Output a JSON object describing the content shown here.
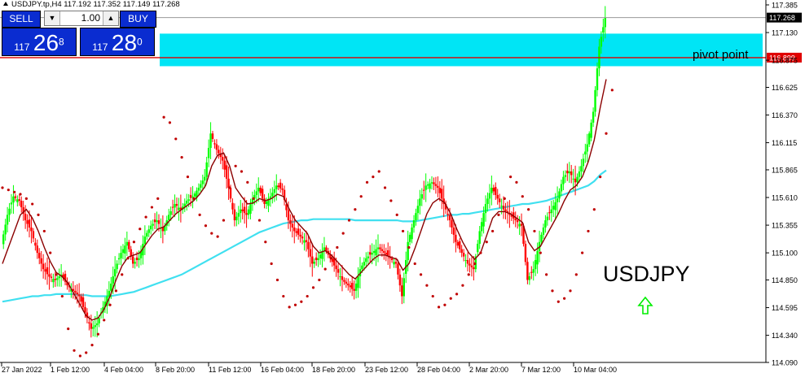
{
  "header": {
    "symbol_info": "USDJPY.tp,H4  117.192 117.352 117.149 117.268"
  },
  "trade_panel": {
    "sell_label": "SELL",
    "buy_label": "BUY",
    "lot_value": "1.00",
    "sell_price": {
      "prefix": "117",
      "big": "26",
      "sup": "8"
    },
    "buy_price": {
      "prefix": "117",
      "big": "28",
      "sup": "0"
    }
  },
  "annotations": {
    "zone_label": "pivot point",
    "symbol_label": "USDJPY",
    "arrow_icon": "up-arrow-icon"
  },
  "chart_data": {
    "type": "candlestick",
    "y_ticks": [
      "117.385",
      "117.130",
      "116.875",
      "116.625",
      "116.370",
      "116.115",
      "115.865",
      "115.610",
      "115.355",
      "115.100",
      "114.850",
      "114.595",
      "114.340",
      "114.090"
    ],
    "x_ticks": [
      "27 Jan 2022",
      "1 Feb 12:00",
      "4 Feb 04:00",
      "8 Feb 20:00",
      "11 Feb 12:00",
      "16 Feb 04:00",
      "18 Feb 20:00",
      "23 Feb 12:00",
      "28 Feb 04:00",
      "2 Mar 20:00",
      "7 Mar 12:00",
      "10 Mar 04:00"
    ],
    "ylim": [
      114.09,
      117.43
    ],
    "current_price": "117.268",
    "pivot_line_price": "116.899",
    "pivot_zone": [
      116.82,
      117.12
    ],
    "colors": {
      "bull": "#00ff00",
      "bear": "#ff0000",
      "ma_fast": "#8b0000",
      "ma_slow": "#40e0f0",
      "sar": "#c00000",
      "zone": "#00e5f5",
      "pivot_line": "#e00000",
      "panel": "#0a2cd0"
    },
    "close_path": [
      115.18,
      115.45,
      115.62,
      115.58,
      115.4,
      115.3,
      115.1,
      114.95,
      114.88,
      114.85,
      114.9,
      114.8,
      114.75,
      114.7,
      114.55,
      114.4,
      114.45,
      114.6,
      114.75,
      114.95,
      115.1,
      115.2,
      115.0,
      115.05,
      115.25,
      115.35,
      115.4,
      115.3,
      115.45,
      115.55,
      115.5,
      115.58,
      115.62,
      115.7,
      115.8,
      116.2,
      116.05,
      115.95,
      115.7,
      115.4,
      115.5,
      115.45,
      115.6,
      115.7,
      115.55,
      115.62,
      115.72,
      115.68,
      115.4,
      115.3,
      115.25,
      115.2,
      115.0,
      115.05,
      115.15,
      115.05,
      114.95,
      114.85,
      114.8,
      114.75,
      114.95,
      115.05,
      115.1,
      115.15,
      115.1,
      115.05,
      115.0,
      114.7,
      115.2,
      115.4,
      115.6,
      115.72,
      115.75,
      115.7,
      115.55,
      115.4,
      115.2,
      115.1,
      115.0,
      114.95,
      115.3,
      115.55,
      115.7,
      115.6,
      115.5,
      115.45,
      115.4,
      115.35,
      114.85,
      114.95,
      115.2,
      115.4,
      115.5,
      115.6,
      115.8,
      115.85,
      115.75,
      115.9,
      116.1,
      116.4,
      117.0,
      117.27
    ],
    "ma_fast_path": [
      115.0,
      115.15,
      115.3,
      115.45,
      115.5,
      115.42,
      115.3,
      115.15,
      115.02,
      114.92,
      114.88,
      114.82,
      114.72,
      114.62,
      114.52,
      114.48,
      114.5,
      114.58,
      114.7,
      114.85,
      114.98,
      115.06,
      115.08,
      115.1,
      115.18,
      115.26,
      115.32,
      115.34,
      115.4,
      115.46,
      115.5,
      115.54,
      115.58,
      115.64,
      115.72,
      115.9,
      116.0,
      116.02,
      115.9,
      115.7,
      115.62,
      115.55,
      115.56,
      115.6,
      115.58,
      115.6,
      115.64,
      115.62,
      115.5,
      115.4,
      115.34,
      115.28,
      115.16,
      115.1,
      115.12,
      115.08,
      115.02,
      114.96,
      114.9,
      114.86,
      114.92,
      114.98,
      115.04,
      115.08,
      115.08,
      115.06,
      115.04,
      114.94,
      115.0,
      115.14,
      115.3,
      115.46,
      115.56,
      115.6,
      115.56,
      115.46,
      115.32,
      115.2,
      115.1,
      115.04,
      115.1,
      115.26,
      115.42,
      115.48,
      115.48,
      115.46,
      115.42,
      115.38,
      115.2,
      115.12,
      115.16,
      115.26,
      115.36,
      115.46,
      115.58,
      115.68,
      115.72,
      115.8,
      115.94,
      116.14,
      116.44,
      116.7
    ],
    "ma_slow_path": [
      114.65,
      114.66,
      114.67,
      114.68,
      114.69,
      114.7,
      114.7,
      114.71,
      114.71,
      114.72,
      114.72,
      114.72,
      114.72,
      114.71,
      114.71,
      114.7,
      114.7,
      114.7,
      114.7,
      114.71,
      114.72,
      114.73,
      114.74,
      114.76,
      114.78,
      114.8,
      114.82,
      114.84,
      114.86,
      114.88,
      114.9,
      114.93,
      114.96,
      114.99,
      115.02,
      115.05,
      115.08,
      115.11,
      115.14,
      115.17,
      115.2,
      115.23,
      115.26,
      115.29,
      115.31,
      115.33,
      115.35,
      115.37,
      115.38,
      115.39,
      115.4,
      115.4,
      115.41,
      115.41,
      115.41,
      115.41,
      115.41,
      115.41,
      115.41,
      115.4,
      115.4,
      115.4,
      115.4,
      115.4,
      115.4,
      115.4,
      115.4,
      115.39,
      115.39,
      115.39,
      115.4,
      115.41,
      115.42,
      115.43,
      115.44,
      115.45,
      115.45,
      115.46,
      115.46,
      115.47,
      115.48,
      115.49,
      115.5,
      115.51,
      115.52,
      115.53,
      115.54,
      115.55,
      115.55,
      115.56,
      115.57,
      115.58,
      115.6,
      115.62,
      115.64,
      115.66,
      115.68,
      115.7,
      115.72,
      115.76,
      115.82,
      115.86
    ],
    "sar_path": [
      115.7,
      115.68,
      115.66,
      115.64,
      115.6,
      115.55,
      115.45,
      115.3,
      115.1,
      114.9,
      114.7,
      114.4,
      114.2,
      114.15,
      114.18,
      114.25,
      114.35,
      114.48,
      114.62,
      114.75,
      114.9,
      115.05,
      115.2,
      115.32,
      115.43,
      115.52,
      115.6,
      116.35,
      116.3,
      116.15,
      115.98,
      115.8,
      115.6,
      115.45,
      115.35,
      115.28,
      115.25,
      115.4,
      115.7,
      115.9,
      115.85,
      115.75,
      115.6,
      115.4,
      115.2,
      115.0,
      114.85,
      114.7,
      114.6,
      114.62,
      114.65,
      114.7,
      114.78,
      114.85,
      114.95,
      115.05,
      115.15,
      115.28,
      115.4,
      115.5,
      115.62,
      115.75,
      115.8,
      115.85,
      115.7,
      115.58,
      115.45,
      115.3,
      115.15,
      115.0,
      114.9,
      114.8,
      114.7,
      114.6,
      114.62,
      114.68,
      114.72,
      114.8,
      114.9,
      115.0,
      115.1,
      115.2,
      115.3,
      115.45,
      115.6,
      115.8,
      115.75,
      115.62,
      115.5,
      115.3,
      115.1,
      114.9,
      114.75,
      114.65,
      114.68,
      114.75,
      114.9,
      115.1,
      115.3,
      115.5,
      115.8,
      116.2,
      116.6
    ]
  }
}
